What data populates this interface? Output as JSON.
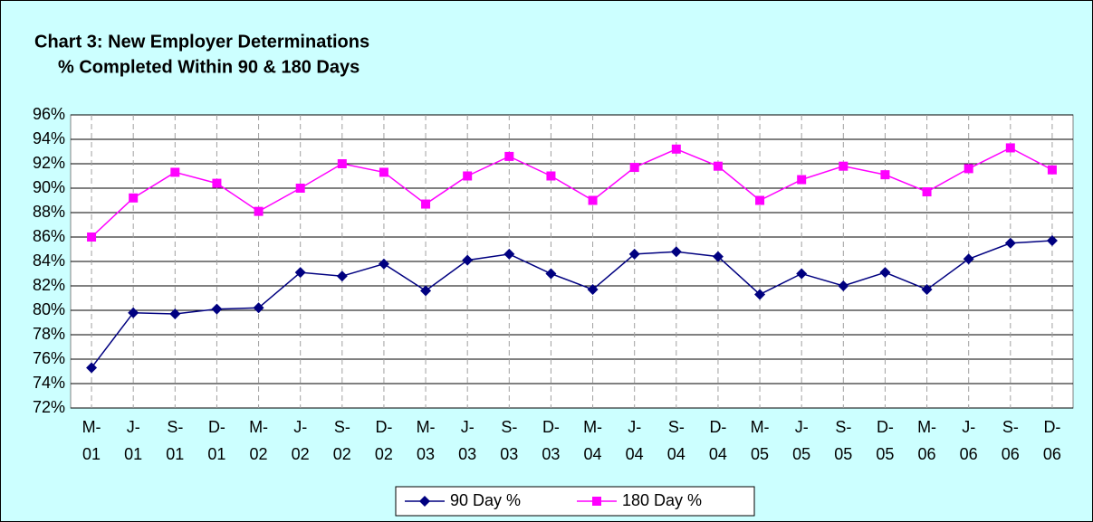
{
  "chart_data": {
    "type": "line",
    "title": "Chart 3: New Employer Determinations",
    "subtitle": "% Completed Within 90 & 180 Days",
    "categories": [
      "M-01",
      "J-01",
      "S-01",
      "D-01",
      "M-02",
      "J-02",
      "S-02",
      "D-02",
      "M-03",
      "J-03",
      "S-03",
      "D-03",
      "M-04",
      "J-04",
      "S-04",
      "D-04",
      "M-05",
      "J-05",
      "S-05",
      "D-05",
      "M-06",
      "J-06",
      "S-06",
      "D-06"
    ],
    "series": [
      {
        "name": "90 Day %",
        "color": "#000080",
        "marker": "diamond",
        "values": [
          75.3,
          79.8,
          79.7,
          80.1,
          80.2,
          83.1,
          82.8,
          83.8,
          81.6,
          84.1,
          84.6,
          83.0,
          81.7,
          84.6,
          84.8,
          84.4,
          81.3,
          83.0,
          82.0,
          83.1,
          81.7,
          84.2,
          85.5,
          85.7
        ]
      },
      {
        "name": "180 Day %",
        "color": "#ff00ff",
        "marker": "square",
        "values": [
          86.0,
          89.2,
          91.3,
          90.4,
          88.1,
          90.0,
          92.0,
          91.3,
          88.7,
          91.0,
          92.6,
          91.0,
          89.0,
          91.7,
          93.2,
          91.8,
          89.0,
          90.7,
          91.8,
          91.1,
          89.7,
          91.6,
          93.3,
          91.5
        ]
      }
    ],
    "ylim": [
      72,
      96
    ],
    "yticks": [
      {
        "value": 72,
        "label": "72%"
      },
      {
        "value": 74,
        "label": "74%"
      },
      {
        "value": 76,
        "label": "76%"
      },
      {
        "value": 78,
        "label": "78%"
      },
      {
        "value": 80,
        "label": "80%"
      },
      {
        "value": 82,
        "label": "82%"
      },
      {
        "value": 84,
        "label": "84%"
      },
      {
        "value": 86,
        "label": "86%"
      },
      {
        "value": 88,
        "label": "88%"
      },
      {
        "value": 90,
        "label": "90%"
      },
      {
        "value": 92,
        "label": "92%"
      },
      {
        "value": 94,
        "label": "94%"
      },
      {
        "value": 96,
        "label": "96%"
      }
    ],
    "grid": true,
    "legend": "bottom"
  }
}
